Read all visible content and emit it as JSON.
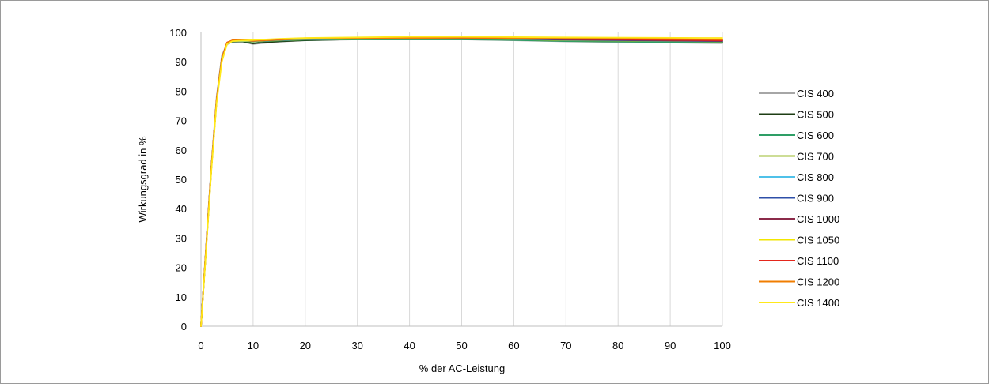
{
  "chart_data": {
    "type": "line",
    "title": "",
    "xlabel": "% der AC-Leistung",
    "ylabel": "Wirkungsgrad in %",
    "xlim": [
      0,
      100
    ],
    "ylim": [
      0,
      100
    ],
    "xticks": [
      0,
      10,
      20,
      30,
      40,
      50,
      60,
      70,
      80,
      90,
      100
    ],
    "yticks": [
      0,
      10,
      20,
      30,
      40,
      50,
      60,
      70,
      80,
      90,
      100
    ],
    "grid": "vertical",
    "legend": "right",
    "series": [
      {
        "name": "CIS 400",
        "color": "#a6a6a6",
        "x": [
          0,
          1,
          2,
          3,
          4,
          5,
          6,
          8,
          10,
          11,
          15,
          20,
          30,
          50,
          60,
          70,
          100
        ],
        "y": [
          0,
          28,
          55,
          78,
          92,
          96.2,
          96.8,
          96.8,
          96.0,
          96.2,
          96.8,
          97.3,
          97.6,
          97.6,
          97.3,
          96.9,
          96.3
        ]
      },
      {
        "name": "CIS 500",
        "color": "#1e3d14",
        "x": [
          0,
          1,
          2,
          3,
          4,
          5,
          6,
          8,
          10,
          11,
          15,
          20,
          30,
          50,
          60,
          70,
          100
        ],
        "y": [
          0,
          27,
          54,
          77,
          91,
          96.0,
          96.8,
          96.9,
          96.2,
          96.4,
          96.9,
          97.3,
          97.7,
          97.8,
          97.5,
          97.1,
          96.6
        ]
      },
      {
        "name": "CIS 600",
        "color": "#2e9e66",
        "x": [
          0,
          1,
          2,
          3,
          4,
          5,
          6,
          8,
          10,
          15,
          20,
          30,
          50,
          60,
          70,
          100
        ],
        "y": [
          0,
          27,
          54,
          77,
          91,
          96.1,
          96.9,
          97.0,
          96.8,
          97.2,
          97.5,
          97.6,
          97.6,
          97.4,
          97.0,
          96.5
        ]
      },
      {
        "name": "CIS 700",
        "color": "#9bbb2e",
        "x": [
          0,
          1,
          2,
          3,
          4,
          5,
          6,
          8,
          10,
          15,
          20,
          30,
          50,
          60,
          70,
          100
        ],
        "y": [
          0,
          27,
          54,
          77,
          91,
          96.2,
          97.0,
          97.1,
          96.9,
          97.3,
          97.6,
          97.8,
          97.9,
          97.7,
          97.3,
          96.9
        ]
      },
      {
        "name": "CIS 800",
        "color": "#4fc1e9",
        "x": [
          0,
          1,
          2,
          3,
          4,
          5,
          6,
          8,
          10,
          15,
          20,
          30,
          50,
          60,
          70,
          100
        ],
        "y": [
          0,
          27,
          54,
          77,
          91,
          96.2,
          97.0,
          97.1,
          97.0,
          97.4,
          97.7,
          97.9,
          98.0,
          97.8,
          97.5,
          97.0
        ]
      },
      {
        "name": "CIS 900",
        "color": "#2e4fa8",
        "x": [
          0,
          1,
          2,
          3,
          4,
          5,
          6,
          8,
          10,
          15,
          20,
          30,
          50,
          60,
          70,
          100
        ],
        "y": [
          0,
          27,
          54,
          77,
          91,
          96.3,
          97.1,
          97.2,
          97.0,
          97.4,
          97.7,
          97.9,
          98.0,
          97.8,
          97.5,
          97.0
        ]
      },
      {
        "name": "CIS 1000",
        "color": "#8b2a4a",
        "x": [
          0,
          1,
          2,
          3,
          4,
          5,
          6,
          8,
          10,
          15,
          20,
          30,
          50,
          60,
          70,
          100
        ],
        "y": [
          0,
          27,
          54,
          77,
          91,
          96.5,
          97.2,
          97.3,
          97.1,
          97.5,
          97.9,
          98.0,
          98.1,
          97.9,
          97.6,
          97.1
        ]
      },
      {
        "name": "CIS 1050",
        "color": "#f2e600",
        "x": [
          0,
          1,
          2,
          3,
          4,
          5,
          6,
          8,
          10,
          15,
          20,
          30,
          50,
          60,
          70,
          100
        ],
        "y": [
          0,
          27,
          54,
          77,
          91,
          96.3,
          97.1,
          97.2,
          97.1,
          97.5,
          97.8,
          98.0,
          98.2,
          98.1,
          98.0,
          97.6
        ]
      },
      {
        "name": "CIS 1100",
        "color": "#e4261c",
        "x": [
          0,
          1,
          2,
          3,
          4,
          5,
          6,
          8,
          10,
          15,
          20,
          30,
          50,
          60,
          70,
          100
        ],
        "y": [
          0,
          27,
          54,
          77,
          91,
          96.6,
          97.3,
          97.4,
          97.2,
          97.6,
          98.0,
          98.1,
          98.2,
          98.0,
          97.8,
          97.3
        ]
      },
      {
        "name": "CIS 1200",
        "color": "#f07d00",
        "x": [
          0,
          1,
          2,
          3,
          4,
          5,
          6,
          8,
          10,
          15,
          20,
          30,
          50,
          60,
          70,
          100
        ],
        "y": [
          0,
          27,
          54,
          77,
          91,
          96.5,
          97.3,
          97.4,
          97.3,
          97.7,
          98.0,
          98.1,
          98.2,
          98.1,
          98.0,
          97.6
        ]
      },
      {
        "name": "CIS 1400",
        "color": "#ffe81a",
        "x": [
          0,
          1,
          2,
          3,
          4,
          5,
          6,
          8,
          10,
          15,
          20,
          30,
          40,
          50,
          60,
          70,
          100
        ],
        "y": [
          0,
          26,
          53,
          76,
          90,
          96.0,
          97.0,
          97.2,
          97.4,
          97.8,
          98.1,
          98.3,
          98.5,
          98.5,
          98.4,
          98.3,
          98.1
        ]
      }
    ]
  }
}
